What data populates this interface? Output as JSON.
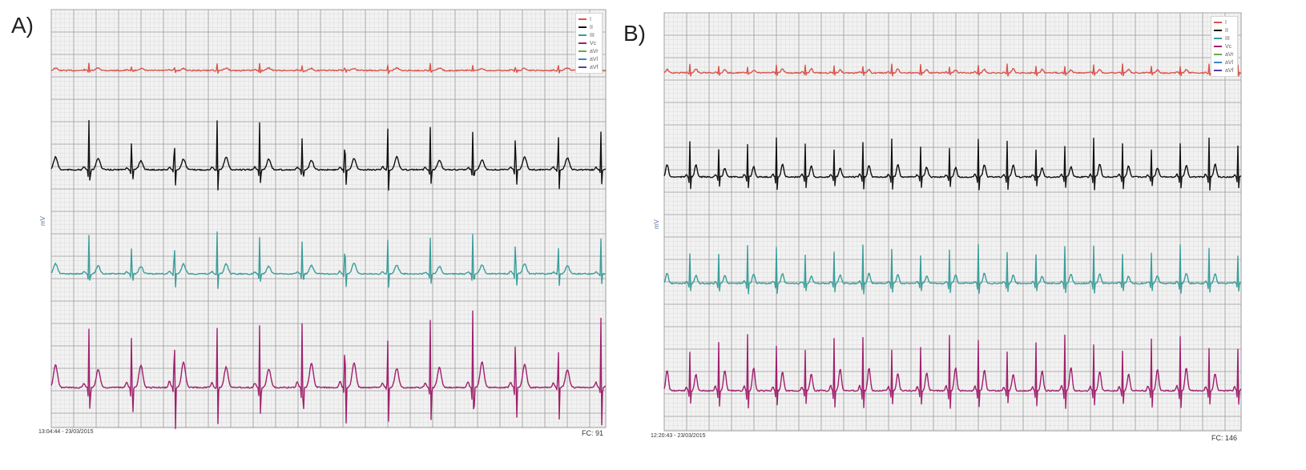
{
  "chart_data": [
    {
      "type": "line",
      "panel_label": "A)",
      "ylabel": "mV",
      "timestamp": "13:04:44 - 23/03/2015",
      "heart_rate_label": "FC: 91",
      "grid": true,
      "legend_position": "top-right",
      "legend": [
        "I",
        "II",
        "III",
        "Vc",
        "aVr",
        "aVl",
        "aVf"
      ],
      "series": [
        {
          "name": "I",
          "color": "#d9544c",
          "amplitude": [
            0.15,
            -0.05,
            0.05
          ]
        },
        {
          "name": "II",
          "color": "#111111",
          "amplitude": [
            1.1,
            -0.4,
            0.25
          ]
        },
        {
          "name": "III",
          "color": "#3a9e9a",
          "amplitude": [
            1.0,
            -0.3,
            0.2
          ]
        },
        {
          "name": "Vc",
          "color": "#a0206e",
          "amplitude": [
            1.7,
            -0.9,
            0.5
          ]
        }
      ],
      "beats": 13
    },
    {
      "type": "line",
      "panel_label": "B)",
      "ylabel": "mV",
      "timestamp": "12:20:43 - 23/03/2015",
      "heart_rate_label": "FC: 146",
      "grid": true,
      "legend_position": "top-right",
      "legend": [
        "I",
        "II",
        "III",
        "Vc",
        "aVr",
        "aVl",
        "aVf"
      ],
      "series": [
        {
          "name": "I",
          "color": "#d9544c",
          "amplitude": [
            0.2,
            -0.1,
            0.08
          ]
        },
        {
          "name": "II",
          "color": "#111111",
          "amplitude": [
            0.9,
            -0.45,
            0.25
          ]
        },
        {
          "name": "III",
          "color": "#3a9e9a",
          "amplitude": [
            0.9,
            -0.35,
            0.2
          ]
        },
        {
          "name": "Vc",
          "color": "#a0206e",
          "amplitude": [
            1.3,
            -0.6,
            0.45
          ]
        }
      ],
      "beats": 20
    }
  ],
  "legend_colors": [
    "#d9544c",
    "#111111",
    "#3a9e9a",
    "#a0206e",
    "#6aa84f",
    "#3d85c6",
    "#5b3fa0"
  ]
}
